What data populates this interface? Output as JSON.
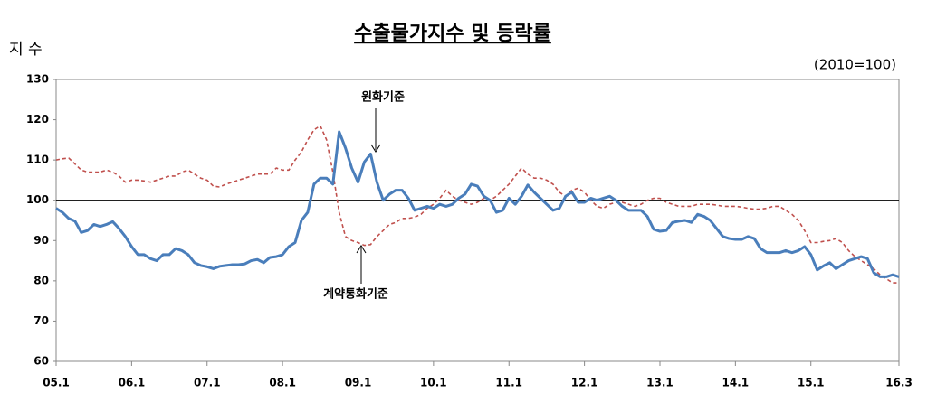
{
  "chart_data": {
    "type": "line",
    "title": "수출물가지수 및 등락률",
    "y_label": "지 수",
    "unit_note": "(2010=100)",
    "categories": [
      "05.1",
      null,
      null,
      null,
      null,
      null,
      null,
      null,
      null,
      null,
      null,
      null,
      "06.1",
      null,
      null,
      null,
      null,
      null,
      null,
      null,
      null,
      null,
      null,
      null,
      "07.1",
      null,
      null,
      null,
      null,
      null,
      null,
      null,
      null,
      null,
      null,
      null,
      "08.1",
      null,
      null,
      null,
      null,
      null,
      null,
      null,
      null,
      null,
      null,
      null,
      "09.1",
      null,
      null,
      null,
      null,
      null,
      null,
      null,
      null,
      null,
      null,
      null,
      "10.1",
      null,
      null,
      null,
      null,
      null,
      null,
      null,
      null,
      null,
      null,
      null,
      "11.1",
      null,
      null,
      null,
      null,
      null,
      null,
      null,
      null,
      null,
      null,
      null,
      "12.1",
      null,
      null,
      null,
      null,
      null,
      null,
      null,
      null,
      null,
      null,
      null,
      "13.1",
      null,
      null,
      null,
      null,
      null,
      null,
      null,
      null,
      null,
      null,
      null,
      "14.1",
      null,
      null,
      null,
      null,
      null,
      null,
      null,
      null,
      null,
      null,
      null,
      "15.1",
      null,
      null,
      null,
      null,
      null,
      null,
      null,
      null,
      null,
      null,
      null,
      null,
      null,
      "16.3"
    ],
    "series": [
      {
        "name": "원화기준",
        "color": "#4a7ebb",
        "values": [
          98,
          97,
          95.5,
          94.8,
          92,
          92.5,
          94,
          93.5,
          94,
          94.7,
          93,
          91,
          88.5,
          86.5,
          86.5,
          85.5,
          85,
          86.5,
          86.5,
          88,
          87.5,
          86.5,
          84.5,
          83.8,
          83.5,
          83,
          83.6,
          83.8,
          84,
          84,
          84.2,
          85,
          85.3,
          84.5,
          85.8,
          86,
          86.5,
          88.5,
          89.5,
          95,
          97,
          104,
          105.5,
          105.5,
          104,
          117,
          113,
          108,
          104.5,
          109.5,
          111.5,
          104.5,
          100,
          101.5,
          102.5,
          102.5,
          100.5,
          97.5,
          98,
          98.5,
          98,
          99,
          98.5,
          99,
          100.5,
          101.5,
          104,
          103.5,
          101,
          100,
          97,
          97.5,
          100.5,
          99,
          101,
          103.8,
          102,
          100.5,
          99,
          97.5,
          98,
          101,
          102,
          99.5,
          99.5,
          100.5,
          100,
          100.5,
          101,
          100,
          98.5,
          97.5,
          97.5,
          97.5,
          96,
          92.8,
          92.3,
          92.5,
          94.5,
          94.8,
          95,
          94.5,
          96.5,
          96,
          95,
          93,
          91,
          90.5,
          90.3,
          90.3,
          91,
          90.5,
          88,
          87,
          87,
          87,
          87.5,
          87,
          87.5,
          88.5,
          86.5,
          82.7,
          83.7,
          84.5,
          83,
          84,
          85,
          85.5,
          86,
          85.5,
          82,
          81,
          81,
          81.5,
          81
        ]
      },
      {
        "name": "계약통화기준",
        "color": "#c0504d",
        "dashed": true,
        "values": [
          110,
          110.3,
          110.5,
          109,
          107.5,
          107,
          107,
          107,
          107.5,
          107,
          106,
          104.5,
          105,
          105,
          104.8,
          104.5,
          105,
          105.5,
          106,
          106,
          107,
          107.5,
          106.5,
          105.5,
          105,
          103.5,
          103.3,
          104,
          104.5,
          105,
          105.5,
          106,
          106.5,
          106.5,
          106.5,
          108,
          107.5,
          107.5,
          110,
          112,
          115,
          117.5,
          118.5,
          115,
          107,
          97,
          91,
          90,
          89.5,
          88.8,
          89,
          91,
          92.5,
          94,
          94.5,
          95.5,
          95.5,
          95.8,
          96.5,
          98,
          99,
          100.5,
          102.5,
          101,
          100,
          99.5,
          99,
          99.5,
          100.5,
          100,
          101,
          102.5,
          104,
          106,
          108,
          106.5,
          105.5,
          105.5,
          105,
          104,
          102,
          101,
          102.5,
          103,
          102,
          100,
          98.5,
          98,
          99,
          99.5,
          99.5,
          99,
          98.5,
          99,
          100,
          100.5,
          100.5,
          99.5,
          99,
          98.5,
          98.5,
          98.5,
          99,
          99,
          99,
          98.8,
          98.5,
          98.5,
          98.5,
          98.3,
          98,
          97.8,
          97.8,
          98,
          98.5,
          98.5,
          97.5,
          96.5,
          95,
          92.5,
          89.5,
          89.5,
          89.8,
          90,
          90.5,
          89.5,
          87.5,
          86,
          85,
          84,
          83,
          81.5,
          80.5,
          79.5,
          79.5
        ]
      }
    ],
    "ylim": [
      60,
      130
    ],
    "yticks": [
      60,
      70,
      80,
      90,
      100,
      110,
      120,
      130
    ],
    "reference_line": 100
  }
}
